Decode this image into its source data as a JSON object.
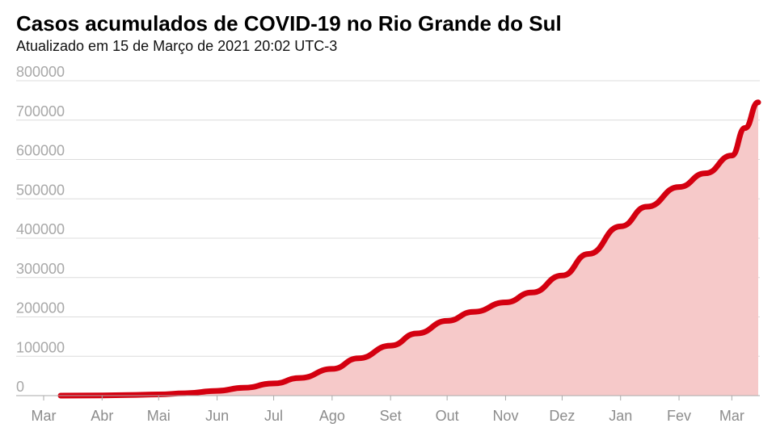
{
  "chart_data": {
    "type": "area",
    "title": "Casos acumulados de COVID-19 no Rio Grande do Sul",
    "subtitle": "Atualizado em 15 de Março de 2021 20:02 UTC-3",
    "xlabel": "",
    "ylabel": "",
    "ylim": [
      0,
      800000
    ],
    "xlim": [
      "2020-03-01",
      "2021-03-15"
    ],
    "y_ticks": [
      "0",
      "100000",
      "200000",
      "300000",
      "400000",
      "500000",
      "600000",
      "700000",
      "800000"
    ],
    "x_ticks": [
      {
        "label": "Mar",
        "date": "2020-03-01"
      },
      {
        "label": "Abr",
        "date": "2020-04-01"
      },
      {
        "label": "Mai",
        "date": "2020-05-01"
      },
      {
        "label": "Jun",
        "date": "2020-06-01"
      },
      {
        "label": "Jul",
        "date": "2020-07-01"
      },
      {
        "label": "Ago",
        "date": "2020-08-01"
      },
      {
        "label": "Set",
        "date": "2020-09-01"
      },
      {
        "label": "Out",
        "date": "2020-10-01"
      },
      {
        "label": "Nov",
        "date": "2020-11-01"
      },
      {
        "label": "Dez",
        "date": "2020-12-01"
      },
      {
        "label": "Jan",
        "date": "2021-01-01"
      },
      {
        "label": "Fev",
        "date": "2021-02-01"
      },
      {
        "label": "Mar",
        "date": "2021-03-01"
      }
    ],
    "grid": true,
    "line_color": "#d40010",
    "fill_color": "#f6c9c9",
    "series": [
      {
        "x": [
          "2020-03-10",
          "2020-04-01",
          "2020-04-15",
          "2020-05-01",
          "2020-05-15",
          "2020-06-01",
          "2020-06-15",
          "2020-07-01",
          "2020-07-15",
          "2020-08-01",
          "2020-08-15",
          "2020-09-01",
          "2020-09-15",
          "2020-10-01",
          "2020-10-15",
          "2020-11-01",
          "2020-11-15",
          "2020-12-01",
          "2020-12-15",
          "2021-01-01",
          "2021-01-15",
          "2021-02-01",
          "2021-02-15",
          "2021-03-01",
          "2021-03-08",
          "2021-03-15"
        ],
        "values": [
          0,
          500,
          1500,
          3000,
          6000,
          12000,
          20000,
          31000,
          45000,
          68000,
          95000,
          127000,
          158000,
          190000,
          213000,
          237000,
          262000,
          305000,
          360000,
          430000,
          480000,
          530000,
          565000,
          610000,
          680000,
          745000
        ]
      }
    ]
  }
}
